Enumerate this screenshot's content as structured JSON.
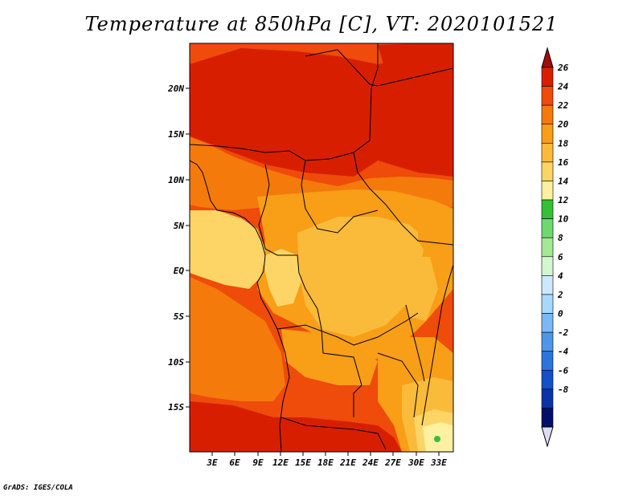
{
  "title": "Temperature at 850hPa [C], VT: 2020101521",
  "credit": "GrADS: IGES/COLA",
  "x_axis": {
    "ticks": [
      "3E",
      "6E",
      "9E",
      "12E",
      "15E",
      "18E",
      "21E",
      "24E",
      "27E",
      "30E",
      "33E"
    ]
  },
  "y_axis": {
    "ticks": [
      "20N",
      "15N",
      "10N",
      "5N",
      "EQ",
      "5S",
      "10S",
      "15S"
    ]
  },
  "colorbar": {
    "labels": [
      "26",
      "24",
      "22",
      "20",
      "18",
      "16",
      "14",
      "12",
      "10",
      "8",
      "6",
      "4",
      "2",
      "0",
      "-2",
      "-4",
      "-6",
      "-8"
    ],
    "colors": [
      "#a50a0a",
      "#d71f00",
      "#ef4b0a",
      "#f47a0c",
      "#f89e17",
      "#fbbb3a",
      "#fdd566",
      "#fdf0a0",
      "#37be37",
      "#6fd96f",
      "#a3ea92",
      "#d3f6d0",
      "#cce8ff",
      "#a8d8ff",
      "#7bb8f4",
      "#4f96e8",
      "#2e74dc",
      "#1450c8",
      "#0a33a8",
      "#00106a",
      "#dcdcf4"
    ]
  },
  "map_colors": {
    "c24": "#d71f00",
    "c22": "#ef4b0a",
    "c20": "#f47a0c",
    "c18": "#f89e17",
    "c16": "#fbbb3a",
    "c14": "#fdd566",
    "green": "#37be37"
  }
}
